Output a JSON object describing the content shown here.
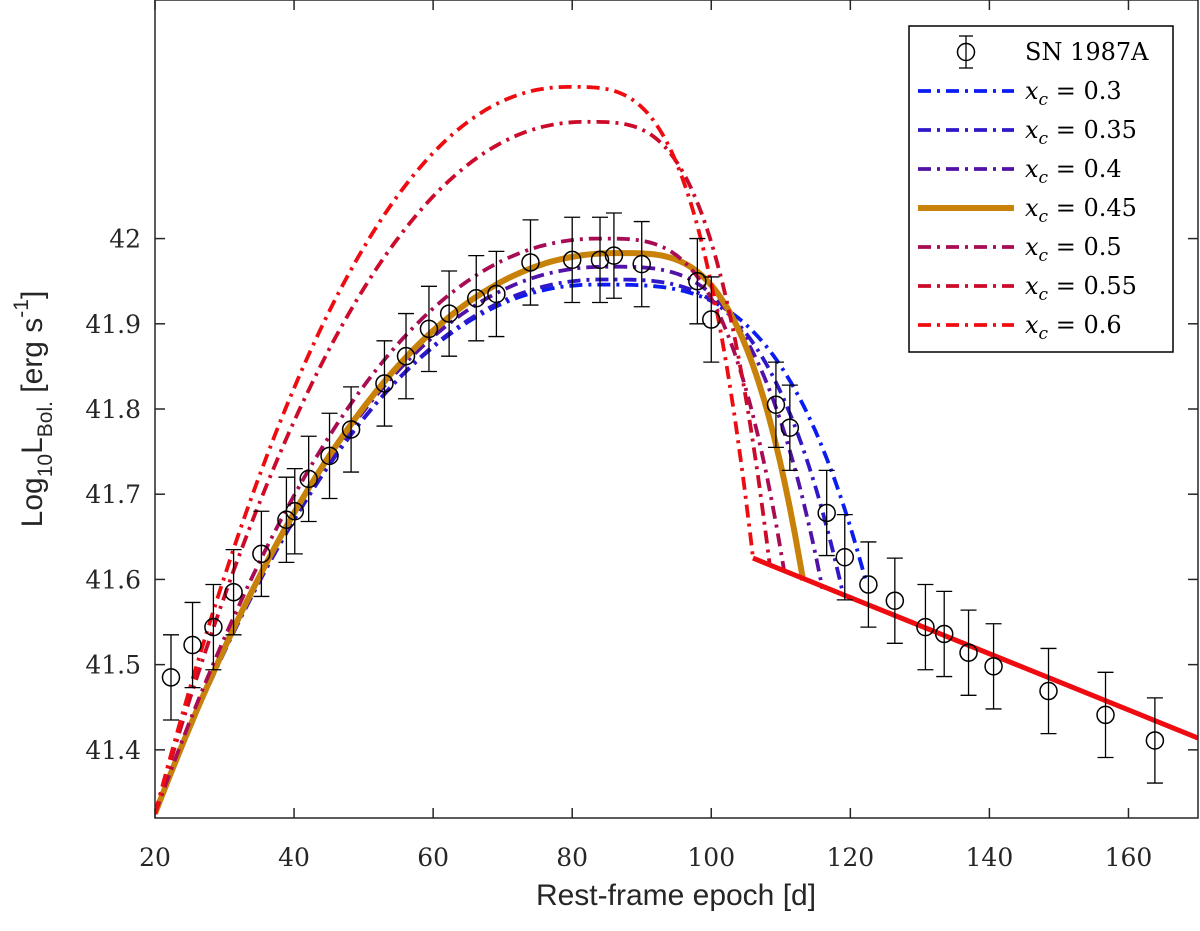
{
  "chart_data": {
    "type": "line",
    "title": "",
    "xlabel": "Rest-frame epoch [d]",
    "ylabel": {
      "base": "Log",
      "sub1": "10",
      "main": "L",
      "sub2": "Bol.",
      "unit_open": " [erg s",
      "unit_sup": "-1",
      "unit_close": "]"
    },
    "xlim": [
      20,
      170
    ],
    "ylim": [
      41.32,
      42.28
    ],
    "xticks": [
      20,
      40,
      60,
      80,
      100,
      120,
      140,
      160
    ],
    "xtick_labels": [
      "20",
      "40",
      "60",
      "80",
      "100",
      "120",
      "140",
      "160"
    ],
    "yticks": [
      41.4,
      41.5,
      41.6,
      41.7,
      41.8,
      41.9,
      42.0
    ],
    "ytick_labels": [
      "41.4",
      "41.5",
      "41.6",
      "41.7",
      "41.8",
      "41.9",
      "42"
    ],
    "legend_position": "top-right",
    "observations": {
      "name": "SN 1987A",
      "error": 0.05,
      "x": [
        22.3,
        25.4,
        28.4,
        31.3,
        35.3,
        38.9,
        40.1,
        42.1,
        45.1,
        48.2,
        53.0,
        56.1,
        59.4,
        62.3,
        66.2,
        69.1,
        74.0,
        80.0,
        84.0,
        86.0,
        90.0,
        98.0,
        100.0,
        109.3,
        111.3,
        116.6,
        119.2,
        122.6,
        126.4,
        130.8,
        133.5,
        137.0,
        140.6,
        148.5,
        156.7,
        163.8
      ],
      "y": [
        41.485,
        41.523,
        41.544,
        41.585,
        41.63,
        41.67,
        41.68,
        41.718,
        41.745,
        41.776,
        41.83,
        41.862,
        41.894,
        41.912,
        41.93,
        41.935,
        41.972,
        41.975,
        41.975,
        41.98,
        41.97,
        41.95,
        41.905,
        41.805,
        41.778,
        41.678,
        41.626,
        41.594,
        41.575,
        41.544,
        41.536,
        41.514,
        41.498,
        41.469,
        41.441,
        41.411
      ]
    },
    "tail": {
      "slope": -0.0033,
      "intercept_at": 106.0,
      "value_at": 41.625
    },
    "series": [
      {
        "name": "x_c = 0.3",
        "label_value": "0.3",
        "x_label": "x",
        "sub_label": "c",
        "color": "#0a1cf2",
        "dash": "dashdot",
        "width": 3.8,
        "peak_x": 83.5,
        "peak_y": 41.946,
        "end_x": 122.2,
        "end_y": 41.599
      },
      {
        "name": "x_c = 0.35",
        "label_value": "0.35",
        "x_label": "x",
        "sub_label": "c",
        "color": "#2e18c8",
        "dash": "dashdot",
        "width": 3.8,
        "peak_x": 84.5,
        "peak_y": 41.952,
        "end_x": 119.0,
        "end_y": 41.581
      },
      {
        "name": "x_c = 0.4",
        "label_value": "0.4",
        "x_label": "x",
        "sub_label": "c",
        "color": "#5212a6",
        "dash": "dashdot",
        "width": 3.8,
        "peak_x": 85.0,
        "peak_y": 41.967,
        "end_x": 116.0,
        "end_y": 41.589
      },
      {
        "name": "x_c = 0.45",
        "label_value": "0.45",
        "x_label": "x",
        "sub_label": "c",
        "color": "#c8820a",
        "dash": "solid",
        "width": 6.0,
        "peak_x": 86.5,
        "peak_y": 41.983,
        "end_x": 113.2,
        "end_y": 41.599
      },
      {
        "name": "x_c = 0.5",
        "label_value": "0.5",
        "x_label": "x",
        "sub_label": "c",
        "color": "#a80c55",
        "dash": "dashdot",
        "width": 3.8,
        "peak_x": 84.0,
        "peak_y": 42.0,
        "end_x": 110.5,
        "end_y": 41.609
      },
      {
        "name": "x_c = 0.55",
        "label_value": "0.55",
        "x_label": "x",
        "sub_label": "c",
        "color": "#cc0a2a",
        "dash": "dashdot",
        "width": 3.8,
        "peak_x": 82.0,
        "peak_y": 42.137,
        "end_x": 108.4,
        "end_y": 41.617
      },
      {
        "name": "x_c = 0.6",
        "label_value": "0.6",
        "x_label": "x",
        "sub_label": "c",
        "color": "#ee0c10",
        "dash": "dashdot",
        "width": 3.8,
        "peak_x": 79.5,
        "peak_y": 42.178,
        "end_x": 106.0,
        "end_y": 41.625
      }
    ],
    "legend_data_label": "SN 1987A"
  }
}
